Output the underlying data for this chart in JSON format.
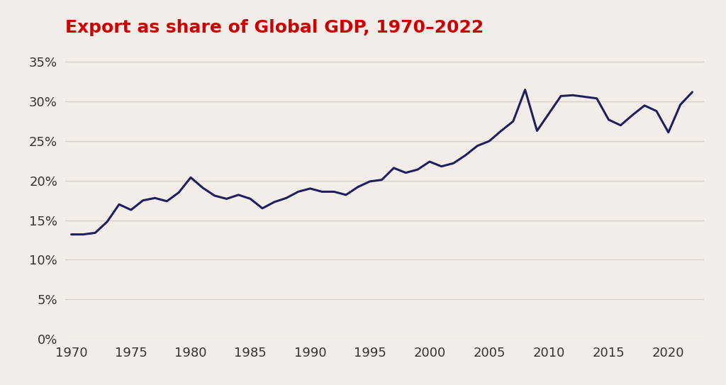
{
  "title": "Export as share of Global GDP, 1970–2022",
  "title_color": "#cc0000",
  "background_color": "#f2ede8",
  "line_color": "#1f1f5e",
  "line_width": 2.2,
  "years": [
    1970,
    1971,
    1972,
    1973,
    1974,
    1975,
    1976,
    1977,
    1978,
    1979,
    1980,
    1981,
    1982,
    1983,
    1984,
    1985,
    1986,
    1987,
    1988,
    1989,
    1990,
    1991,
    1992,
    1993,
    1994,
    1995,
    1996,
    1997,
    1998,
    1999,
    2000,
    2001,
    2002,
    2003,
    2004,
    2005,
    2006,
    2007,
    2008,
    2009,
    2010,
    2011,
    2012,
    2013,
    2014,
    2015,
    2016,
    2017,
    2018,
    2019,
    2020,
    2021,
    2022
  ],
  "values": [
    0.132,
    0.132,
    0.134,
    0.148,
    0.17,
    0.163,
    0.175,
    0.178,
    0.174,
    0.185,
    0.204,
    0.191,
    0.181,
    0.177,
    0.182,
    0.177,
    0.165,
    0.173,
    0.178,
    0.186,
    0.19,
    0.186,
    0.186,
    0.182,
    0.192,
    0.199,
    0.201,
    0.216,
    0.21,
    0.214,
    0.224,
    0.218,
    0.222,
    0.232,
    0.244,
    0.25,
    0.263,
    0.275,
    0.315,
    0.263,
    0.285,
    0.307,
    0.308,
    0.306,
    0.304,
    0.277,
    0.27,
    0.283,
    0.295,
    0.288,
    0.261,
    0.296,
    0.312
  ],
  "yticks": [
    0.0,
    0.05,
    0.1,
    0.15,
    0.2,
    0.25,
    0.3,
    0.35
  ],
  "xticks": [
    1970,
    1975,
    1980,
    1985,
    1990,
    1995,
    2000,
    2005,
    2010,
    2015,
    2020
  ],
  "ylim": [
    0.0,
    0.37
  ],
  "xlim": [
    1969.5,
    2023.0
  ],
  "grid_color": "#d8d0c8",
  "tick_label_fontsize": 13,
  "title_fontsize": 18
}
